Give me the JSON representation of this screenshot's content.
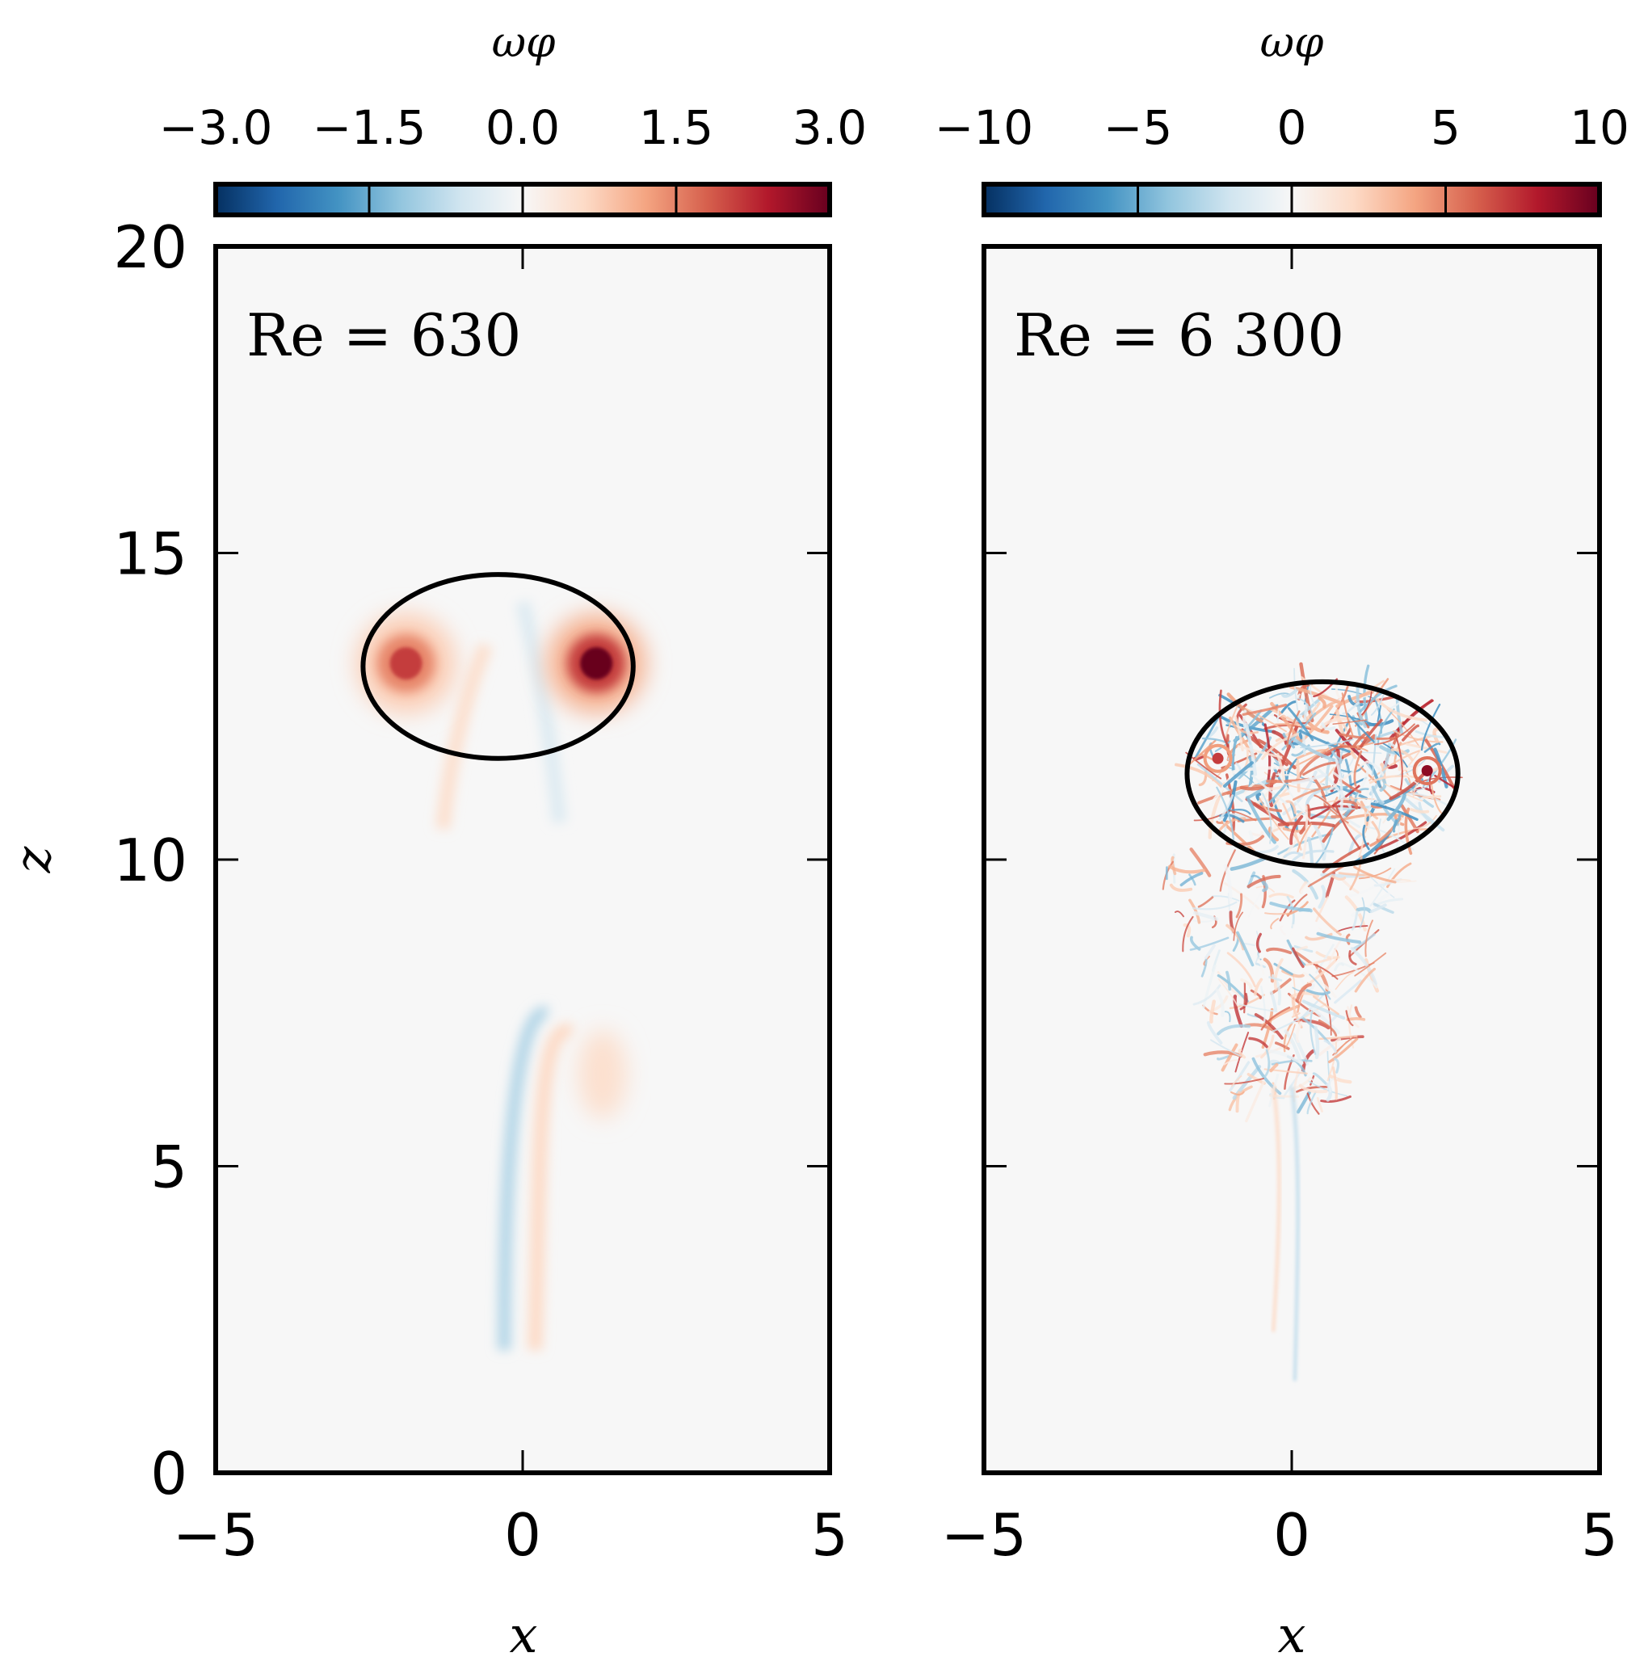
{
  "chart_data": [
    {
      "type": "heatmap",
      "colorbar": {
        "label": "ωφ",
        "range": [
          -3.0,
          3.0
        ],
        "ticks": [
          "−3.0",
          "−1.5",
          "0.0",
          "1.5",
          "3.0"
        ],
        "tick_values": [
          -3.0,
          -1.5,
          0.0,
          1.5,
          3.0
        ],
        "colormap": [
          "#053061",
          "#2166ac",
          "#4393c3",
          "#92c5de",
          "#d1e5f0",
          "#f7f7f7",
          "#fddbc7",
          "#f4a582",
          "#d6604d",
          "#b2182b",
          "#67001f"
        ]
      },
      "annotation": "Re = 630",
      "xlabel": "x",
      "ylabel": "z",
      "xlim": [
        -5,
        5
      ],
      "ylim": [
        0,
        20
      ],
      "xticks": [
        "−5",
        "0",
        "5"
      ],
      "xtick_values": [
        -5,
        0,
        5
      ],
      "yticks": [
        "0",
        "5",
        "10",
        "15",
        "20"
      ],
      "ytick_values": [
        0,
        5,
        10,
        15,
        20
      ],
      "outline": {
        "shape": "ellipse",
        "center": [
          -0.4,
          13.15
        ],
        "half_width": 2.2,
        "half_height": 1.5
      },
      "vortices": [
        {
          "x": -1.9,
          "z": 13.2,
          "value": 2.1
        },
        {
          "x": 1.2,
          "z": 13.2,
          "value": 3.0
        }
      ],
      "wake_x_range": [
        -0.3,
        0.8
      ],
      "wake_z_range": [
        2.0,
        11.0
      ]
    },
    {
      "type": "heatmap",
      "colorbar": {
        "label": "ωφ",
        "range": [
          -10,
          10
        ],
        "ticks": [
          "−10",
          "−5",
          "0",
          "5",
          "10"
        ],
        "tick_values": [
          -10,
          -5,
          0,
          5,
          10
        ],
        "colormap": [
          "#053061",
          "#2166ac",
          "#4393c3",
          "#92c5de",
          "#d1e5f0",
          "#f7f7f7",
          "#fddbc7",
          "#f4a582",
          "#d6604d",
          "#b2182b",
          "#67001f"
        ]
      },
      "annotation": "Re = 6 300",
      "xlabel": "x",
      "ylabel": "",
      "xlim": [
        -5,
        5
      ],
      "ylim": [
        0,
        20
      ],
      "xticks": [
        "−5",
        "0",
        "5"
      ],
      "xtick_values": [
        -5,
        0,
        5
      ],
      "yticks": [],
      "ytick_values": [
        0,
        5,
        10,
        15,
        20
      ],
      "outline": {
        "shape": "ellipse",
        "center": [
          0.5,
          11.4
        ],
        "half_width": 2.2,
        "half_height": 1.5
      },
      "vortices": [
        {
          "x": -1.2,
          "z": 11.65,
          "value": 7
        },
        {
          "x": 2.2,
          "z": 11.45,
          "value": 9
        }
      ],
      "wake_x_range": [
        -2.1,
        1.9
      ],
      "wake_z_range": [
        1.5,
        10.0
      ]
    }
  ]
}
